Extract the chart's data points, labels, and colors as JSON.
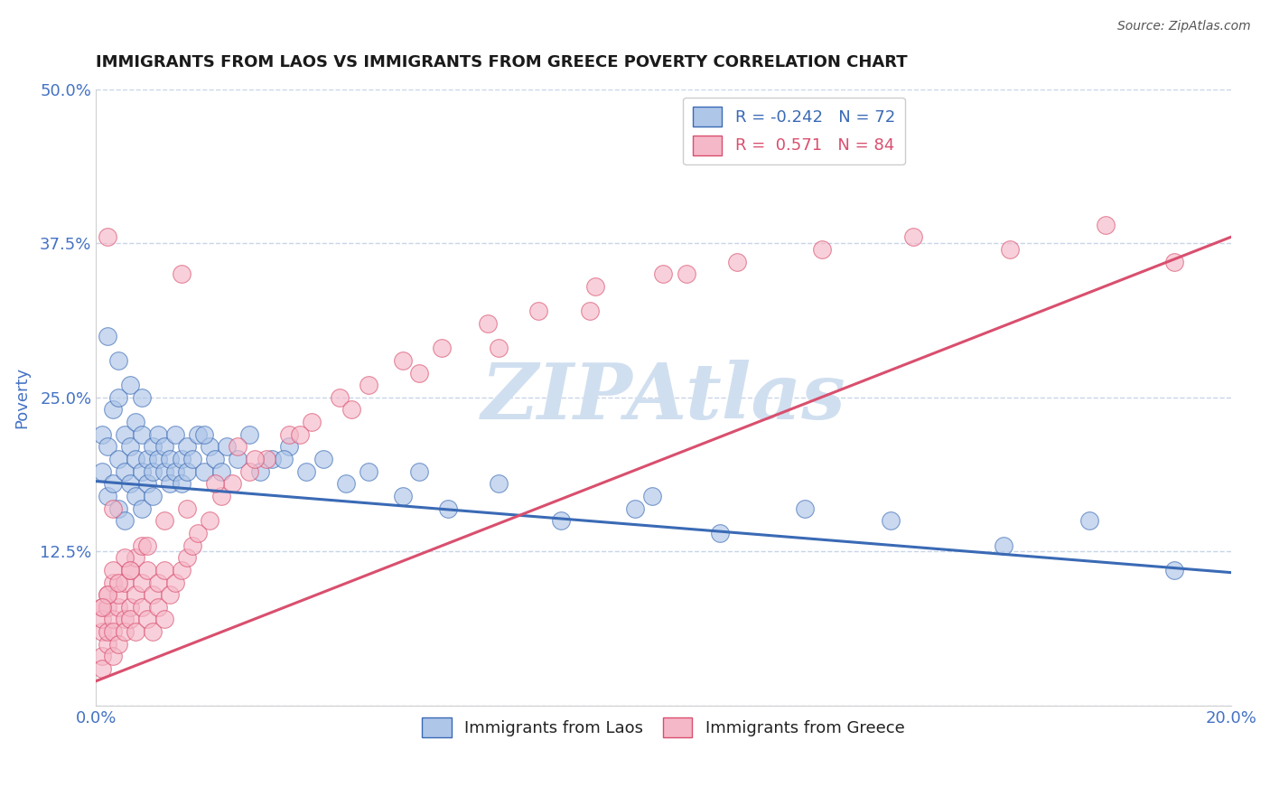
{
  "title": "IMMIGRANTS FROM LAOS VS IMMIGRANTS FROM GREECE POVERTY CORRELATION CHART",
  "source": "Source: ZipAtlas.com",
  "ylabel": "Poverty",
  "xlim": [
    0.0,
    0.2
  ],
  "ylim": [
    0.0,
    0.5
  ],
  "xticks": [
    0.0,
    0.05,
    0.1,
    0.15,
    0.2
  ],
  "xticklabels": [
    "0.0%",
    "",
    "",
    "",
    "20.0%"
  ],
  "yticks": [
    0.0,
    0.125,
    0.25,
    0.375,
    0.5
  ],
  "yticklabels": [
    "",
    "12.5%",
    "25.0%",
    "37.5%",
    "50.0%"
  ],
  "blue_label": "Immigrants from Laos",
  "pink_label": "Immigrants from Greece",
  "blue_R": -0.242,
  "blue_N": 72,
  "pink_R": 0.571,
  "pink_N": 84,
  "blue_color": "#aec6e8",
  "pink_color": "#f5b8c8",
  "blue_line_color": "#3a6ab5",
  "pink_line_color": "#d94f6e",
  "watermark": "ZIPAtlas",
  "watermark_color": "#d0dff0",
  "title_fontsize": 13,
  "tick_label_color": "#4472c4",
  "grid_color": "#c8d4e8",
  "blue_line_x0": 0.0,
  "blue_line_y0": 0.182,
  "blue_line_x1": 0.2,
  "blue_line_y1": 0.108,
  "pink_line_x0": 0.0,
  "pink_line_y0": 0.02,
  "pink_line_x1": 0.2,
  "pink_line_y1": 0.38,
  "blue_scatter_x": [
    0.001,
    0.001,
    0.002,
    0.002,
    0.003,
    0.003,
    0.004,
    0.004,
    0.004,
    0.005,
    0.005,
    0.005,
    0.006,
    0.006,
    0.006,
    0.007,
    0.007,
    0.007,
    0.008,
    0.008,
    0.008,
    0.009,
    0.009,
    0.01,
    0.01,
    0.01,
    0.011,
    0.011,
    0.012,
    0.012,
    0.013,
    0.013,
    0.014,
    0.014,
    0.015,
    0.015,
    0.016,
    0.016,
    0.017,
    0.018,
    0.019,
    0.02,
    0.021,
    0.022,
    0.023,
    0.025,
    0.027,
    0.029,
    0.031,
    0.034,
    0.037,
    0.04,
    0.044,
    0.048,
    0.054,
    0.062,
    0.071,
    0.082,
    0.095,
    0.11,
    0.125,
    0.14,
    0.16,
    0.175,
    0.19,
    0.098,
    0.057,
    0.033,
    0.019,
    0.008,
    0.004,
    0.002
  ],
  "blue_scatter_y": [
    0.19,
    0.22,
    0.17,
    0.21,
    0.18,
    0.24,
    0.16,
    0.2,
    0.25,
    0.19,
    0.22,
    0.15,
    0.21,
    0.18,
    0.26,
    0.2,
    0.17,
    0.23,
    0.19,
    0.22,
    0.16,
    0.2,
    0.18,
    0.21,
    0.19,
    0.17,
    0.22,
    0.2,
    0.19,
    0.21,
    0.2,
    0.18,
    0.22,
    0.19,
    0.2,
    0.18,
    0.21,
    0.19,
    0.2,
    0.22,
    0.19,
    0.21,
    0.2,
    0.19,
    0.21,
    0.2,
    0.22,
    0.19,
    0.2,
    0.21,
    0.19,
    0.2,
    0.18,
    0.19,
    0.17,
    0.16,
    0.18,
    0.15,
    0.16,
    0.14,
    0.16,
    0.15,
    0.13,
    0.15,
    0.11,
    0.17,
    0.19,
    0.2,
    0.22,
    0.25,
    0.28,
    0.3
  ],
  "pink_scatter_x": [
    0.001,
    0.001,
    0.001,
    0.001,
    0.001,
    0.002,
    0.002,
    0.002,
    0.002,
    0.003,
    0.003,
    0.003,
    0.003,
    0.004,
    0.004,
    0.004,
    0.005,
    0.005,
    0.005,
    0.006,
    0.006,
    0.006,
    0.007,
    0.007,
    0.007,
    0.008,
    0.008,
    0.009,
    0.009,
    0.01,
    0.01,
    0.011,
    0.011,
    0.012,
    0.012,
    0.013,
    0.014,
    0.015,
    0.016,
    0.017,
    0.018,
    0.02,
    0.022,
    0.024,
    0.027,
    0.03,
    0.034,
    0.038,
    0.043,
    0.048,
    0.054,
    0.061,
    0.069,
    0.078,
    0.088,
    0.1,
    0.113,
    0.128,
    0.144,
    0.161,
    0.178,
    0.19,
    0.008,
    0.005,
    0.003,
    0.002,
    0.001,
    0.004,
    0.006,
    0.009,
    0.012,
    0.016,
    0.021,
    0.028,
    0.036,
    0.045,
    0.057,
    0.071,
    0.087,
    0.104,
    0.015,
    0.025,
    0.002,
    0.003
  ],
  "pink_scatter_y": [
    0.04,
    0.06,
    0.08,
    0.03,
    0.07,
    0.05,
    0.08,
    0.06,
    0.09,
    0.07,
    0.04,
    0.1,
    0.06,
    0.08,
    0.05,
    0.09,
    0.07,
    0.1,
    0.06,
    0.08,
    0.11,
    0.07,
    0.09,
    0.06,
    0.12,
    0.08,
    0.1,
    0.07,
    0.11,
    0.09,
    0.06,
    0.1,
    0.08,
    0.11,
    0.07,
    0.09,
    0.1,
    0.11,
    0.12,
    0.13,
    0.14,
    0.15,
    0.17,
    0.18,
    0.19,
    0.2,
    0.22,
    0.23,
    0.25,
    0.26,
    0.28,
    0.29,
    0.31,
    0.32,
    0.34,
    0.35,
    0.36,
    0.37,
    0.38,
    0.37,
    0.39,
    0.36,
    0.13,
    0.12,
    0.11,
    0.09,
    0.08,
    0.1,
    0.11,
    0.13,
    0.15,
    0.16,
    0.18,
    0.2,
    0.22,
    0.24,
    0.27,
    0.29,
    0.32,
    0.35,
    0.35,
    0.21,
    0.38,
    0.16
  ]
}
